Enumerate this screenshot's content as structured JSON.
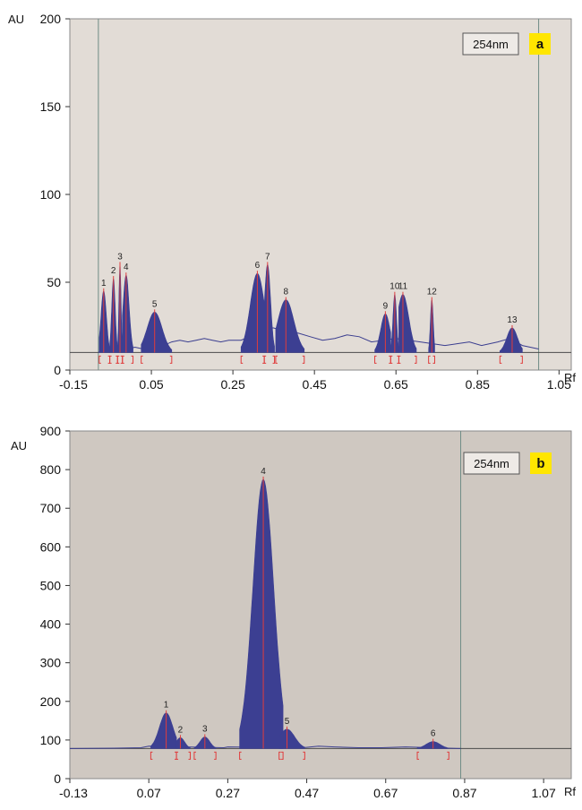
{
  "chart_data": [
    {
      "type": "area",
      "panel_label": "a",
      "wavelength": "254nm",
      "y_unit": "AU",
      "x_unit": "Rf",
      "xlim": [
        -0.15,
        1.08
      ],
      "ylim": [
        0,
        200
      ],
      "x_ticks": [
        -0.15,
        0.05,
        0.25,
        0.45,
        0.65,
        0.85,
        1.05
      ],
      "x_tick_labels": [
        "-0.15",
        "0.05",
        "0.25",
        "0.45",
        "0.65",
        "0.85",
        "1.05"
      ],
      "y_ticks": [
        0,
        50,
        100,
        150,
        200
      ],
      "y_tick_labels": [
        "0",
        "50",
        "100",
        "150",
        "200"
      ],
      "baseline": 10,
      "vlines": [
        -0.08,
        1.0
      ],
      "colors": {
        "background": "#e2dcd6",
        "fill": "#3c3f92",
        "trace": "#3a3d8f",
        "marker": "#e03c3c",
        "highlight": "#ffe600"
      },
      "trace": [
        [
          -0.08,
          10
        ],
        [
          -0.07,
          12
        ],
        [
          -0.05,
          13
        ],
        [
          -0.03,
          14
        ],
        [
          -0.01,
          12
        ],
        [
          0.01,
          13
        ],
        [
          0.03,
          12
        ],
        [
          0.06,
          12
        ],
        [
          0.08,
          14
        ],
        [
          0.1,
          16
        ],
        [
          0.12,
          17
        ],
        [
          0.14,
          16
        ],
        [
          0.16,
          17
        ],
        [
          0.18,
          18
        ],
        [
          0.2,
          17
        ],
        [
          0.22,
          16
        ],
        [
          0.24,
          17
        ],
        [
          0.27,
          17
        ],
        [
          0.3,
          20
        ],
        [
          0.32,
          24
        ],
        [
          0.35,
          24
        ],
        [
          0.38,
          22
        ],
        [
          0.41,
          21
        ],
        [
          0.44,
          19
        ],
        [
          0.47,
          17
        ],
        [
          0.5,
          18
        ],
        [
          0.53,
          20
        ],
        [
          0.56,
          19
        ],
        [
          0.59,
          16
        ],
        [
          0.62,
          17
        ],
        [
          0.65,
          18
        ],
        [
          0.68,
          17
        ],
        [
          0.71,
          16
        ],
        [
          0.74,
          15
        ],
        [
          0.77,
          14
        ],
        [
          0.8,
          15
        ],
        [
          0.83,
          16
        ],
        [
          0.86,
          14
        ],
        [
          0.9,
          16
        ],
        [
          0.93,
          18
        ],
        [
          0.96,
          14
        ],
        [
          1.0,
          12
        ]
      ],
      "peaks": [
        {
          "label": "1",
          "center": -0.067,
          "height": 45,
          "start": -0.078,
          "end": -0.052
        },
        {
          "label": "2",
          "center": -0.043,
          "height": 52,
          "start": -0.052,
          "end": -0.033
        },
        {
          "label": "3",
          "center": -0.027,
          "height": 60,
          "start": -0.033,
          "end": -0.021
        },
        {
          "label": "4",
          "center": -0.012,
          "height": 54,
          "start": -0.021,
          "end": 0.005
        },
        {
          "label": "5",
          "center": 0.058,
          "height": 33,
          "start": 0.025,
          "end": 0.1
        },
        {
          "label": "6",
          "center": 0.31,
          "height": 55,
          "start": 0.27,
          "end": 0.327
        },
        {
          "label": "7",
          "center": 0.335,
          "height": 60,
          "start": 0.327,
          "end": 0.352
        },
        {
          "label": "8",
          "center": 0.38,
          "height": 40,
          "start": 0.355,
          "end": 0.425
        },
        {
          "label": "9",
          "center": 0.624,
          "height": 32,
          "start": 0.598,
          "end": 0.637
        },
        {
          "label": "10",
          "center": 0.647,
          "height": 43,
          "start": 0.637,
          "end": 0.657
        },
        {
          "label": "11",
          "center": 0.667,
          "height": 43,
          "start": 0.657,
          "end": 0.7
        },
        {
          "label": "12",
          "center": 0.738,
          "height": 40,
          "start": 0.73,
          "end": 0.745
        },
        {
          "label": "13",
          "center": 0.935,
          "height": 24,
          "start": 0.905,
          "end": 0.96
        }
      ]
    },
    {
      "type": "area",
      "panel_label": "b",
      "wavelength": "254nm",
      "y_unit": "AU",
      "x_unit": "Rf",
      "xlim": [
        -0.13,
        1.14
      ],
      "ylim": [
        0,
        900
      ],
      "x_ticks": [
        -0.13,
        0.07,
        0.27,
        0.47,
        0.67,
        0.87,
        1.07
      ],
      "x_tick_labels": [
        "-0.13",
        "0.07",
        "0.27",
        "0.47",
        "0.67",
        "0.87",
        "1.07"
      ],
      "y_ticks": [
        0,
        100,
        200,
        300,
        400,
        500,
        600,
        700,
        800,
        900
      ],
      "y_tick_labels": [
        "0",
        "100",
        "200",
        "300",
        "400",
        "500",
        "600",
        "700",
        "800",
        "900"
      ],
      "baseline": 78,
      "vlines": [
        0.86
      ],
      "colors": {
        "background": "#cfc8c1",
        "fill": "#3c3f92",
        "trace": "#3a3d8f",
        "marker": "#e03c3c",
        "highlight": "#ffe600"
      },
      "trace": [
        [
          -0.13,
          78
        ],
        [
          0.0,
          79
        ],
        [
          0.05,
          80
        ],
        [
          0.07,
          84
        ],
        [
          0.26,
          80
        ],
        [
          0.27,
          82
        ],
        [
          0.46,
          80
        ],
        [
          0.5,
          84
        ],
        [
          0.54,
          82
        ],
        [
          0.6,
          80
        ],
        [
          0.66,
          80
        ],
        [
          0.72,
          82
        ],
        [
          0.86,
          78
        ]
      ],
      "peaks": [
        {
          "label": "1",
          "center": 0.114,
          "height": 170,
          "start": 0.075,
          "end": 0.14
        },
        {
          "label": "2",
          "center": 0.15,
          "height": 106,
          "start": 0.14,
          "end": 0.175
        },
        {
          "label": "3",
          "center": 0.212,
          "height": 108,
          "start": 0.185,
          "end": 0.24
        },
        {
          "label": "4",
          "center": 0.36,
          "height": 775,
          "start": 0.3,
          "end": 0.41
        },
        {
          "label": "5",
          "center": 0.42,
          "height": 128,
          "start": 0.4,
          "end": 0.465
        },
        {
          "label": "6",
          "center": 0.79,
          "height": 96,
          "start": 0.75,
          "end": 0.83
        }
      ]
    }
  ]
}
